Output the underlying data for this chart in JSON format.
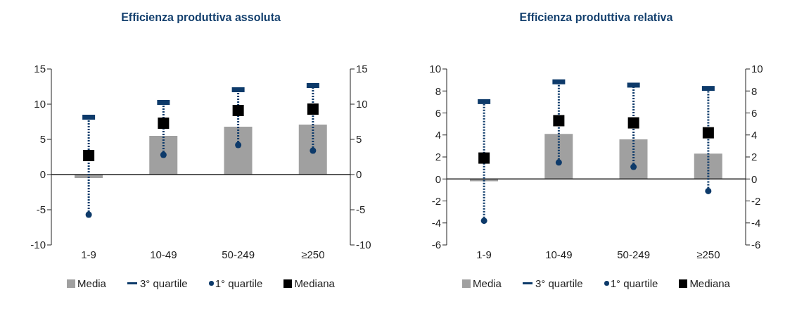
{
  "chart_data": [
    {
      "type": "bar",
      "title": "Efficienza produttiva assoluta",
      "categories": [
        "1-9",
        "10-49",
        "50-249",
        "≥250"
      ],
      "series": [
        {
          "name": "Media",
          "color": "#a0a0a0",
          "values": [
            -0.5,
            5.5,
            6.8,
            7.1
          ]
        },
        {
          "name": "3° quartile",
          "type": "scatter",
          "color": "#0d3a6a",
          "values": [
            8.1,
            10.2,
            12.0,
            12.6
          ]
        },
        {
          "name": "1° quartile",
          "type": "scatter",
          "marker": "circle",
          "color": "#0d3a6a",
          "values": [
            -5.7,
            2.8,
            4.2,
            3.4
          ]
        },
        {
          "name": "Mediana",
          "type": "scatter",
          "marker": "square",
          "color": "#000000",
          "values": [
            2.7,
            7.3,
            9.1,
            9.3
          ]
        }
      ],
      "ylim": [
        -10,
        15
      ],
      "yticks": [
        -10,
        -5,
        0,
        5,
        10,
        15
      ],
      "y2lim": [
        -10,
        15
      ],
      "y2ticks": [
        -10,
        -5,
        0,
        5,
        10,
        15
      ],
      "legend": "bottom"
    },
    {
      "type": "bar",
      "title": "Efficienza produttiva relativa",
      "categories": [
        "1-9",
        "10-49",
        "50-249",
        "≥250"
      ],
      "series": [
        {
          "name": "Media",
          "color": "#a0a0a0",
          "values": [
            -0.2,
            4.1,
            3.6,
            2.3
          ]
        },
        {
          "name": "3° quartile",
          "type": "scatter",
          "color": "#0d3a6a",
          "values": [
            7.0,
            8.8,
            8.5,
            8.2
          ]
        },
        {
          "name": "1° quartile",
          "type": "scatter",
          "marker": "circle",
          "color": "#0d3a6a",
          "values": [
            -3.8,
            1.5,
            1.1,
            -1.1
          ]
        },
        {
          "name": "Mediana",
          "type": "scatter",
          "marker": "square",
          "color": "#000000",
          "values": [
            1.9,
            5.3,
            5.1,
            4.2
          ]
        }
      ],
      "ylim": [
        -6,
        10
      ],
      "yticks": [
        -6,
        -4,
        -2,
        0,
        2,
        4,
        6,
        8,
        10
      ],
      "y2lim": [
        -6,
        10
      ],
      "y2ticks": [
        -6,
        -4,
        -2,
        0,
        2,
        4,
        6,
        8,
        10
      ],
      "legend": "bottom"
    }
  ]
}
